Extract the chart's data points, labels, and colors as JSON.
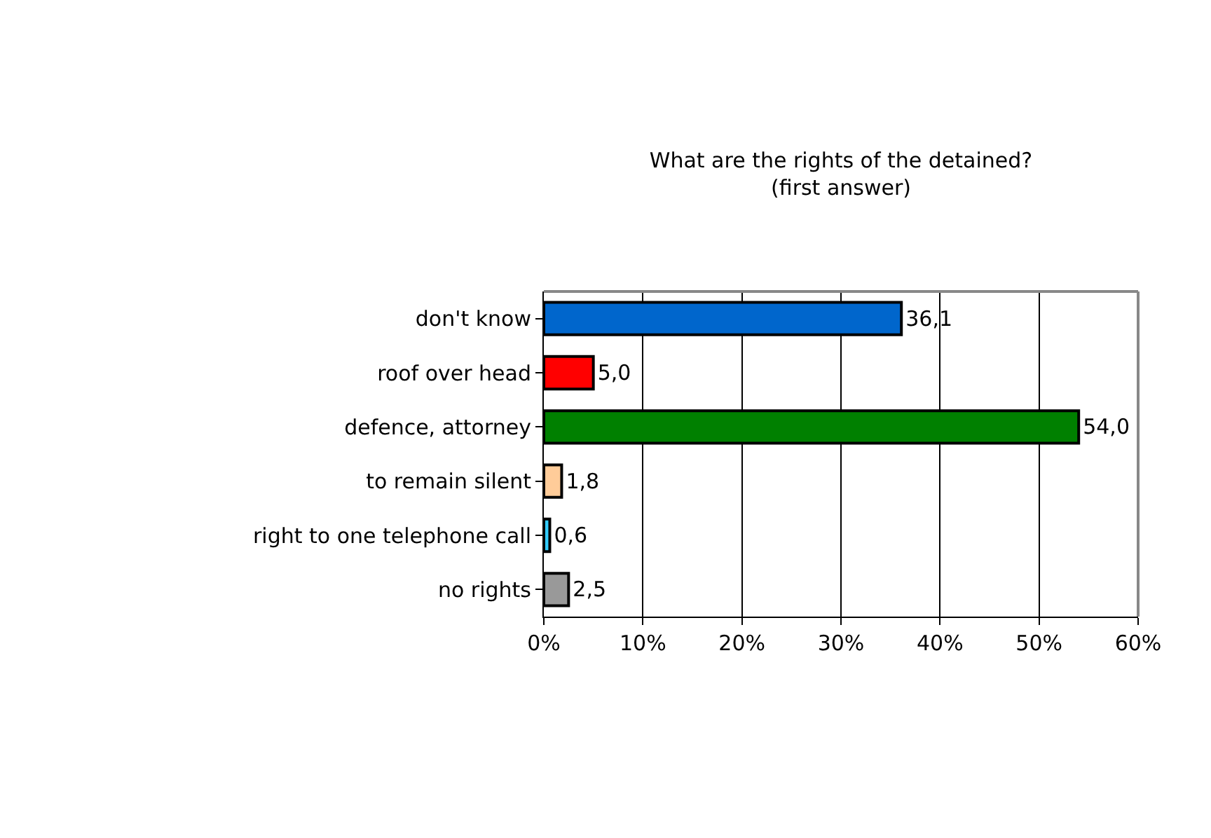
{
  "chart_data": {
    "type": "bar",
    "orientation": "horizontal",
    "title": "What are the rights of the detained?\n(first answer)",
    "categories": [
      "don't know",
      "roof over head",
      "defence, attorney",
      "to remain silent",
      "right to one telephone call",
      "no rights"
    ],
    "values": [
      36.1,
      5.0,
      54.0,
      1.8,
      0.6,
      2.5
    ],
    "value_labels": [
      "36,1",
      "5,0",
      "54,0",
      "1,8",
      "0,6",
      "2,5"
    ],
    "colors": [
      "#0066cc",
      "#ff0000",
      "#008000",
      "#ffcc99",
      "#33ccff",
      "#999999"
    ],
    "xlim": [
      0,
      60
    ],
    "xticks": [
      {
        "value": 0,
        "label": "0%"
      },
      {
        "value": 10,
        "label": "10%"
      },
      {
        "value": 20,
        "label": "20%"
      },
      {
        "value": 30,
        "label": "30%"
      },
      {
        "value": 40,
        "label": "40%"
      },
      {
        "value": 50,
        "label": "50%"
      },
      {
        "value": 60,
        "label": "60%"
      }
    ],
    "grid": "x"
  }
}
